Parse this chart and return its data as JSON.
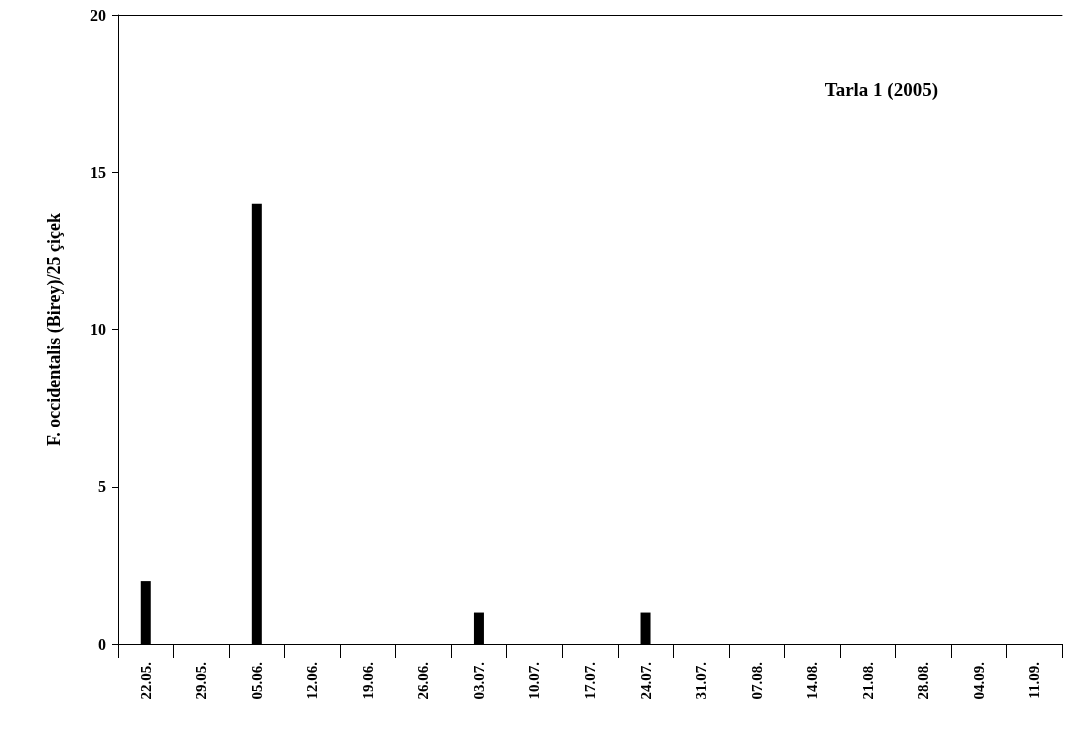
{
  "chart_data": {
    "type": "bar",
    "title": "Tarla 1 (2005)",
    "ylabel": "F. occidentalis (Birey)/25 çiçek",
    "categories": [
      "22.05.",
      "29.05.",
      "05.06.",
      "12.06.",
      "19.06.",
      "26.06.",
      "03.07.",
      "10.07.",
      "17.07.",
      "24.07.",
      "31.07.",
      "07.08.",
      "14.08.",
      "21.08.",
      "28.08.",
      "04.09.",
      "11.09."
    ],
    "values": [
      2,
      0,
      14,
      0,
      0,
      0,
      1,
      0,
      0,
      1,
      0,
      0,
      0,
      0,
      0,
      0,
      0
    ],
    "color": "#000000",
    "ylim": [
      0,
      20
    ],
    "yticks": [
      0,
      5,
      10,
      15,
      20
    ],
    "grid": false
  }
}
